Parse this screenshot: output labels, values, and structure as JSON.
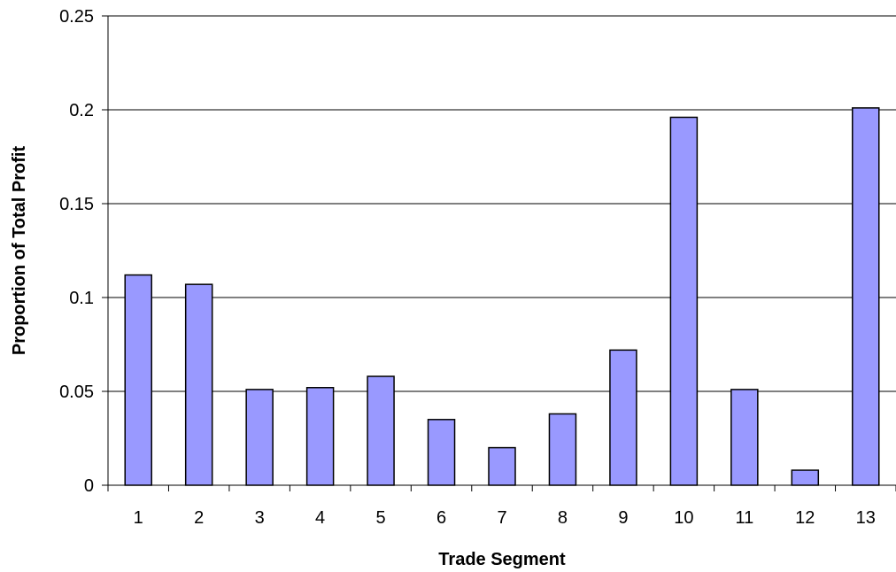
{
  "chart_data": {
    "type": "bar",
    "title": "",
    "xlabel": "Trade Segment",
    "ylabel": "Proportion of Total Profit",
    "categories": [
      "1",
      "2",
      "3",
      "4",
      "5",
      "6",
      "7",
      "8",
      "9",
      "10",
      "11",
      "12",
      "13"
    ],
    "values": [
      0.112,
      0.107,
      0.051,
      0.052,
      0.058,
      0.035,
      0.02,
      0.038,
      0.072,
      0.196,
      0.051,
      0.008,
      0.201
    ],
    "ylim": [
      0,
      0.25
    ],
    "yticks": [
      "0",
      "0.05",
      "0.1",
      "0.15",
      "0.2",
      "0.25"
    ],
    "grid": true,
    "legend": "none",
    "bar_color": "#9999ff",
    "bar_stroke": "#000000"
  }
}
